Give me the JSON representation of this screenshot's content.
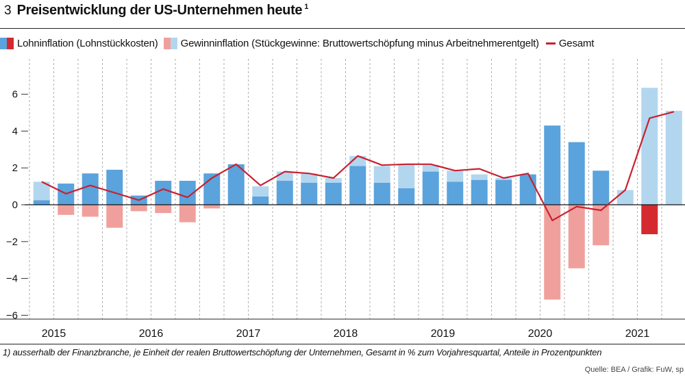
{
  "header": {
    "number": "3",
    "title": "Preisentwicklung der US-Unternehmen heute",
    "footnote_mark": "1"
  },
  "legend": {
    "items": [
      {
        "label": "Lohninflation (Lohnstückkosten)",
        "colors": [
          "#5aa3dc",
          "#d42a2f"
        ]
      },
      {
        "label": "Gewinninflation (Stückgewinne: Bruttowertschöpfung minus Arbeitnehmerentgelt)",
        "colors": [
          "#f0a09c",
          "#b3d6ef"
        ]
      },
      {
        "label": "Gesamt",
        "color": "#c8202f"
      }
    ]
  },
  "footnote": "1) ausserhalb der Finanzbranche, je Einheit der realen Bruttowertschöpfung der Unternehmen, Gesamt in % zum Vorjahresquartal, Anteile in Prozentpunkten",
  "source": "Quelle: BEA / Grafik: FuW, sp",
  "chart_data": {
    "type": "bar",
    "stacked": true,
    "x": [
      "2015-Q1",
      "2015-Q2",
      "2015-Q3",
      "2015-Q4",
      "2016-Q1",
      "2016-Q2",
      "2016-Q3",
      "2016-Q4",
      "2017-Q1",
      "2017-Q2",
      "2017-Q3",
      "2017-Q4",
      "2018-Q1",
      "2018-Q2",
      "2018-Q3",
      "2018-Q4",
      "2019-Q1",
      "2019-Q2",
      "2019-Q3",
      "2019-Q4",
      "2020-Q1",
      "2020-Q2",
      "2020-Q3",
      "2020-Q4",
      "2021-Q1",
      "2021-Q2",
      "2021-Q3"
    ],
    "year_labels": [
      "2015",
      "2016",
      "2017",
      "2018",
      "2019",
      "2020",
      "2021"
    ],
    "series": [
      {
        "name": "Lohninflation (Lohnstückkosten)",
        "color_pos": "#5aa3dc",
        "color_neg": "#d42a2f",
        "values": [
          0.25,
          1.15,
          1.7,
          1.9,
          0.5,
          1.3,
          1.3,
          1.7,
          2.2,
          0.45,
          1.3,
          1.2,
          1.2,
          2.1,
          1.2,
          0.9,
          1.8,
          1.25,
          1.35,
          1.35,
          1.65,
          4.3,
          3.4,
          1.85,
          0.0,
          -1.6,
          0.0
        ]
      },
      {
        "name": "Gewinninflation (Stückgewinne: Bruttowertschöpfung minus Arbeitnehmerentgelt)",
        "color_pos": "#b3d6ef",
        "color_neg": "#f0a09c",
        "values": [
          1.0,
          -0.55,
          -0.65,
          -1.25,
          -0.35,
          -0.45,
          -0.95,
          -0.2,
          0.0,
          0.55,
          0.5,
          0.5,
          0.25,
          0.55,
          0.9,
          1.3,
          0.35,
          0.6,
          0.3,
          0.1,
          0.0,
          -5.15,
          -3.45,
          -2.2,
          0.8,
          6.35,
          5.1
        ]
      },
      {
        "name": "Gesamt",
        "type": "line",
        "color": "#c8202f",
        "values": [
          1.25,
          0.6,
          1.05,
          0.65,
          0.25,
          0.85,
          0.4,
          1.45,
          2.2,
          1.05,
          1.8,
          1.7,
          1.45,
          2.65,
          2.15,
          2.2,
          2.2,
          1.85,
          1.95,
          1.45,
          1.7,
          -0.85,
          -0.1,
          -0.3,
          0.8,
          4.7,
          5.05
        ]
      }
    ],
    "ylim": [
      -6,
      7.8
    ],
    "yticks": [
      -6,
      -4,
      -2,
      0,
      2,
      4,
      6
    ],
    "grid": "vertical, dashed at quarter boundaries"
  }
}
